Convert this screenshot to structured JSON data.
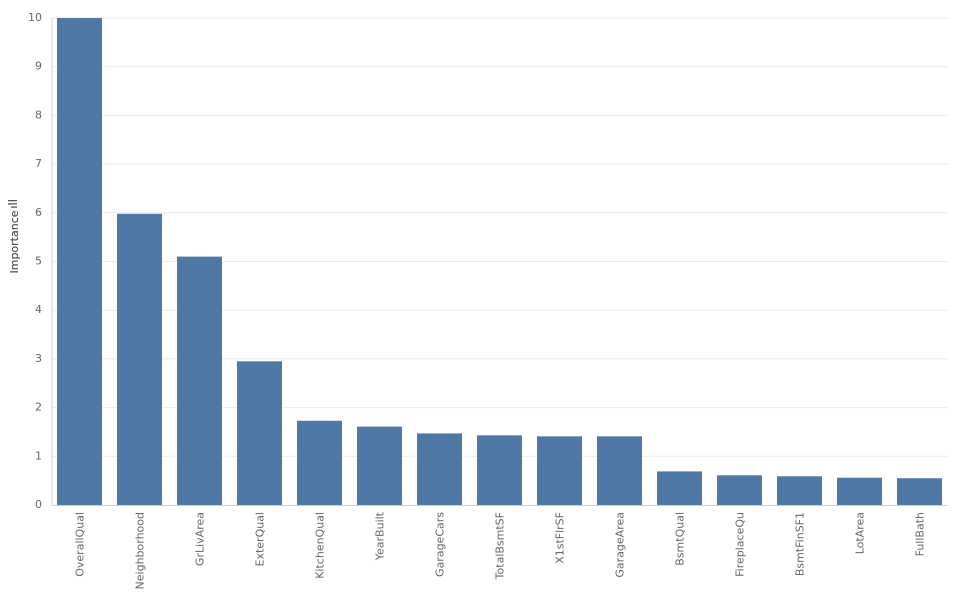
{
  "chart_data": {
    "type": "bar",
    "title": "",
    "xlabel": "",
    "ylabel": "Importance",
    "categories": [
      "OverallQual",
      "Neighborhood",
      "GrLivArea",
      "ExterQual",
      "KitchenQual",
      "YearBuilt",
      "GarageCars",
      "TotalBsmtSF",
      "X1stFlrSF",
      "GarageArea",
      "BsmtQual",
      "FireplaceQu",
      "BsmtFinSF1",
      "LotArea",
      "FullBath"
    ],
    "values": [
      10.0,
      5.98,
      5.1,
      2.95,
      1.73,
      1.61,
      1.47,
      1.43,
      1.41,
      1.41,
      0.69,
      0.61,
      0.59,
      0.56,
      0.55
    ],
    "ylim": [
      0,
      10
    ],
    "yticks": [
      0,
      1,
      2,
      3,
      4,
      5,
      6,
      7,
      8,
      9,
      10
    ],
    "grid": true,
    "bar_color": "#4e79a7",
    "grid_color": "#ebebeb",
    "axis_color": "#d0d0d0"
  }
}
